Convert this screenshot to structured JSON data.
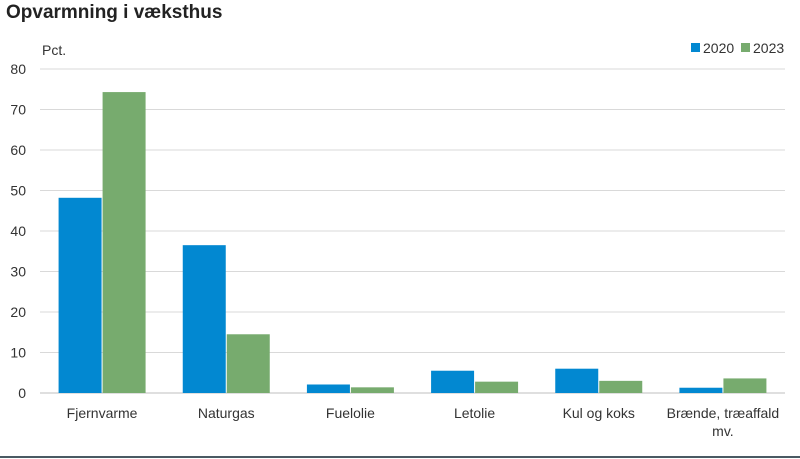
{
  "title": "Opvarmning i væksthus",
  "chart_data": {
    "type": "bar",
    "title": "Opvarmning i væksthus",
    "ylabel": "Pct.",
    "xlabel": "",
    "ylim": [
      0,
      80
    ],
    "yticks": [
      0,
      10,
      20,
      30,
      40,
      50,
      60,
      70,
      80
    ],
    "grid": true,
    "legend": "top-right",
    "categories": [
      [
        "Fjernvarme"
      ],
      [
        "Naturgas"
      ],
      [
        "Fuelolie"
      ],
      [
        "Letolie"
      ],
      [
        "Kul og koks"
      ],
      [
        "Brænde, træaffald",
        "mv."
      ]
    ],
    "series": [
      {
        "name": "2020",
        "color": "#0288d1",
        "values": [
          48.2,
          36.5,
          2.1,
          5.5,
          6.0,
          1.3
        ]
      },
      {
        "name": "2023",
        "color": "#77ab6e",
        "values": [
          74.3,
          14.5,
          1.4,
          2.8,
          3.0,
          3.6
        ]
      }
    ]
  }
}
